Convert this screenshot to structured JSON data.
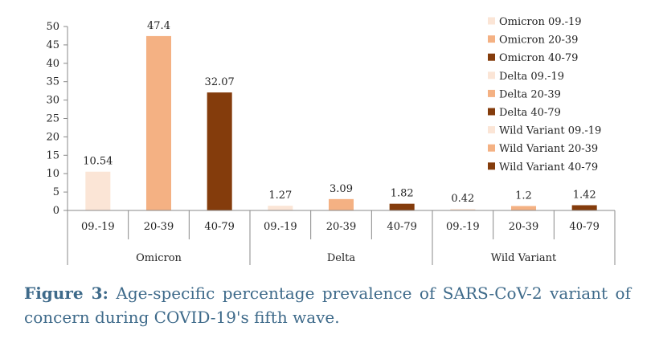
{
  "chart_data": {
    "type": "bar",
    "title": "",
    "xlabel": "",
    "ylabel": "",
    "ylim": [
      0,
      50
    ],
    "yticks": [
      0,
      5,
      10,
      15,
      20,
      25,
      30,
      35,
      40,
      45,
      50
    ],
    "grid": false,
    "legend_position": "right",
    "groups": [
      {
        "name": "Omicron",
        "bars": [
          {
            "category": "09.-19",
            "value": 10.54,
            "label": "10.54",
            "series": "Omicron 09.-19",
            "color": "#fbe5d6"
          },
          {
            "category": "20-39",
            "value": 47.4,
            "label": "47.4",
            "series": "Omicron 20-39",
            "color": "#f4b183"
          },
          {
            "category": "40-79",
            "value": 32.07,
            "label": "32.07",
            "series": "Omicron 40-79",
            "color": "#843c0c"
          }
        ]
      },
      {
        "name": "Delta",
        "bars": [
          {
            "category": "09.-19",
            "value": 1.27,
            "label": "1.27",
            "series": "Delta 09.-19",
            "color": "#fbe5d6"
          },
          {
            "category": "20-39",
            "value": 3.09,
            "label": "3.09",
            "series": "Delta 20-39",
            "color": "#f4b183"
          },
          {
            "category": "40-79",
            "value": 1.82,
            "label": "1.82",
            "series": "Delta 40-79",
            "color": "#843c0c"
          }
        ]
      },
      {
        "name": "Wild Variant",
        "bars": [
          {
            "category": "09.-19",
            "value": 0.42,
            "label": "0.42",
            "series": "Wild Variant 09.-19",
            "color": "#fbe5d6"
          },
          {
            "category": "20-39",
            "value": 1.2,
            "label": "1.2",
            "series": "Wild Variant 20-39",
            "color": "#f4b183"
          },
          {
            "category": "40-79",
            "value": 1.42,
            "label": "1.42",
            "series": "Wild Variant 40-79",
            "color": "#843c0c"
          }
        ]
      }
    ],
    "legend": [
      {
        "name": "Omicron 09.-19",
        "color": "#fbe5d6"
      },
      {
        "name": "Omicron 20-39",
        "color": "#f4b183"
      },
      {
        "name": "Omicron 40-79",
        "color": "#843c0c"
      },
      {
        "name": "Delta 09.-19",
        "color": "#fbe5d6"
      },
      {
        "name": "Delta 20-39",
        "color": "#f4b183"
      },
      {
        "name": "Delta 40-79",
        "color": "#843c0c"
      },
      {
        "name": "Wild Variant 09.-19",
        "color": "#fbe5d6"
      },
      {
        "name": "Wild Variant 20-39",
        "color": "#f4b183"
      },
      {
        "name": "Wild Variant 40-79",
        "color": "#843c0c"
      }
    ]
  },
  "caption": {
    "label": "Figure 3:",
    "text": "Age-specific percentage prevalence of SARS-CoV-2 variant of concern during COVID-19's fifth wave."
  }
}
